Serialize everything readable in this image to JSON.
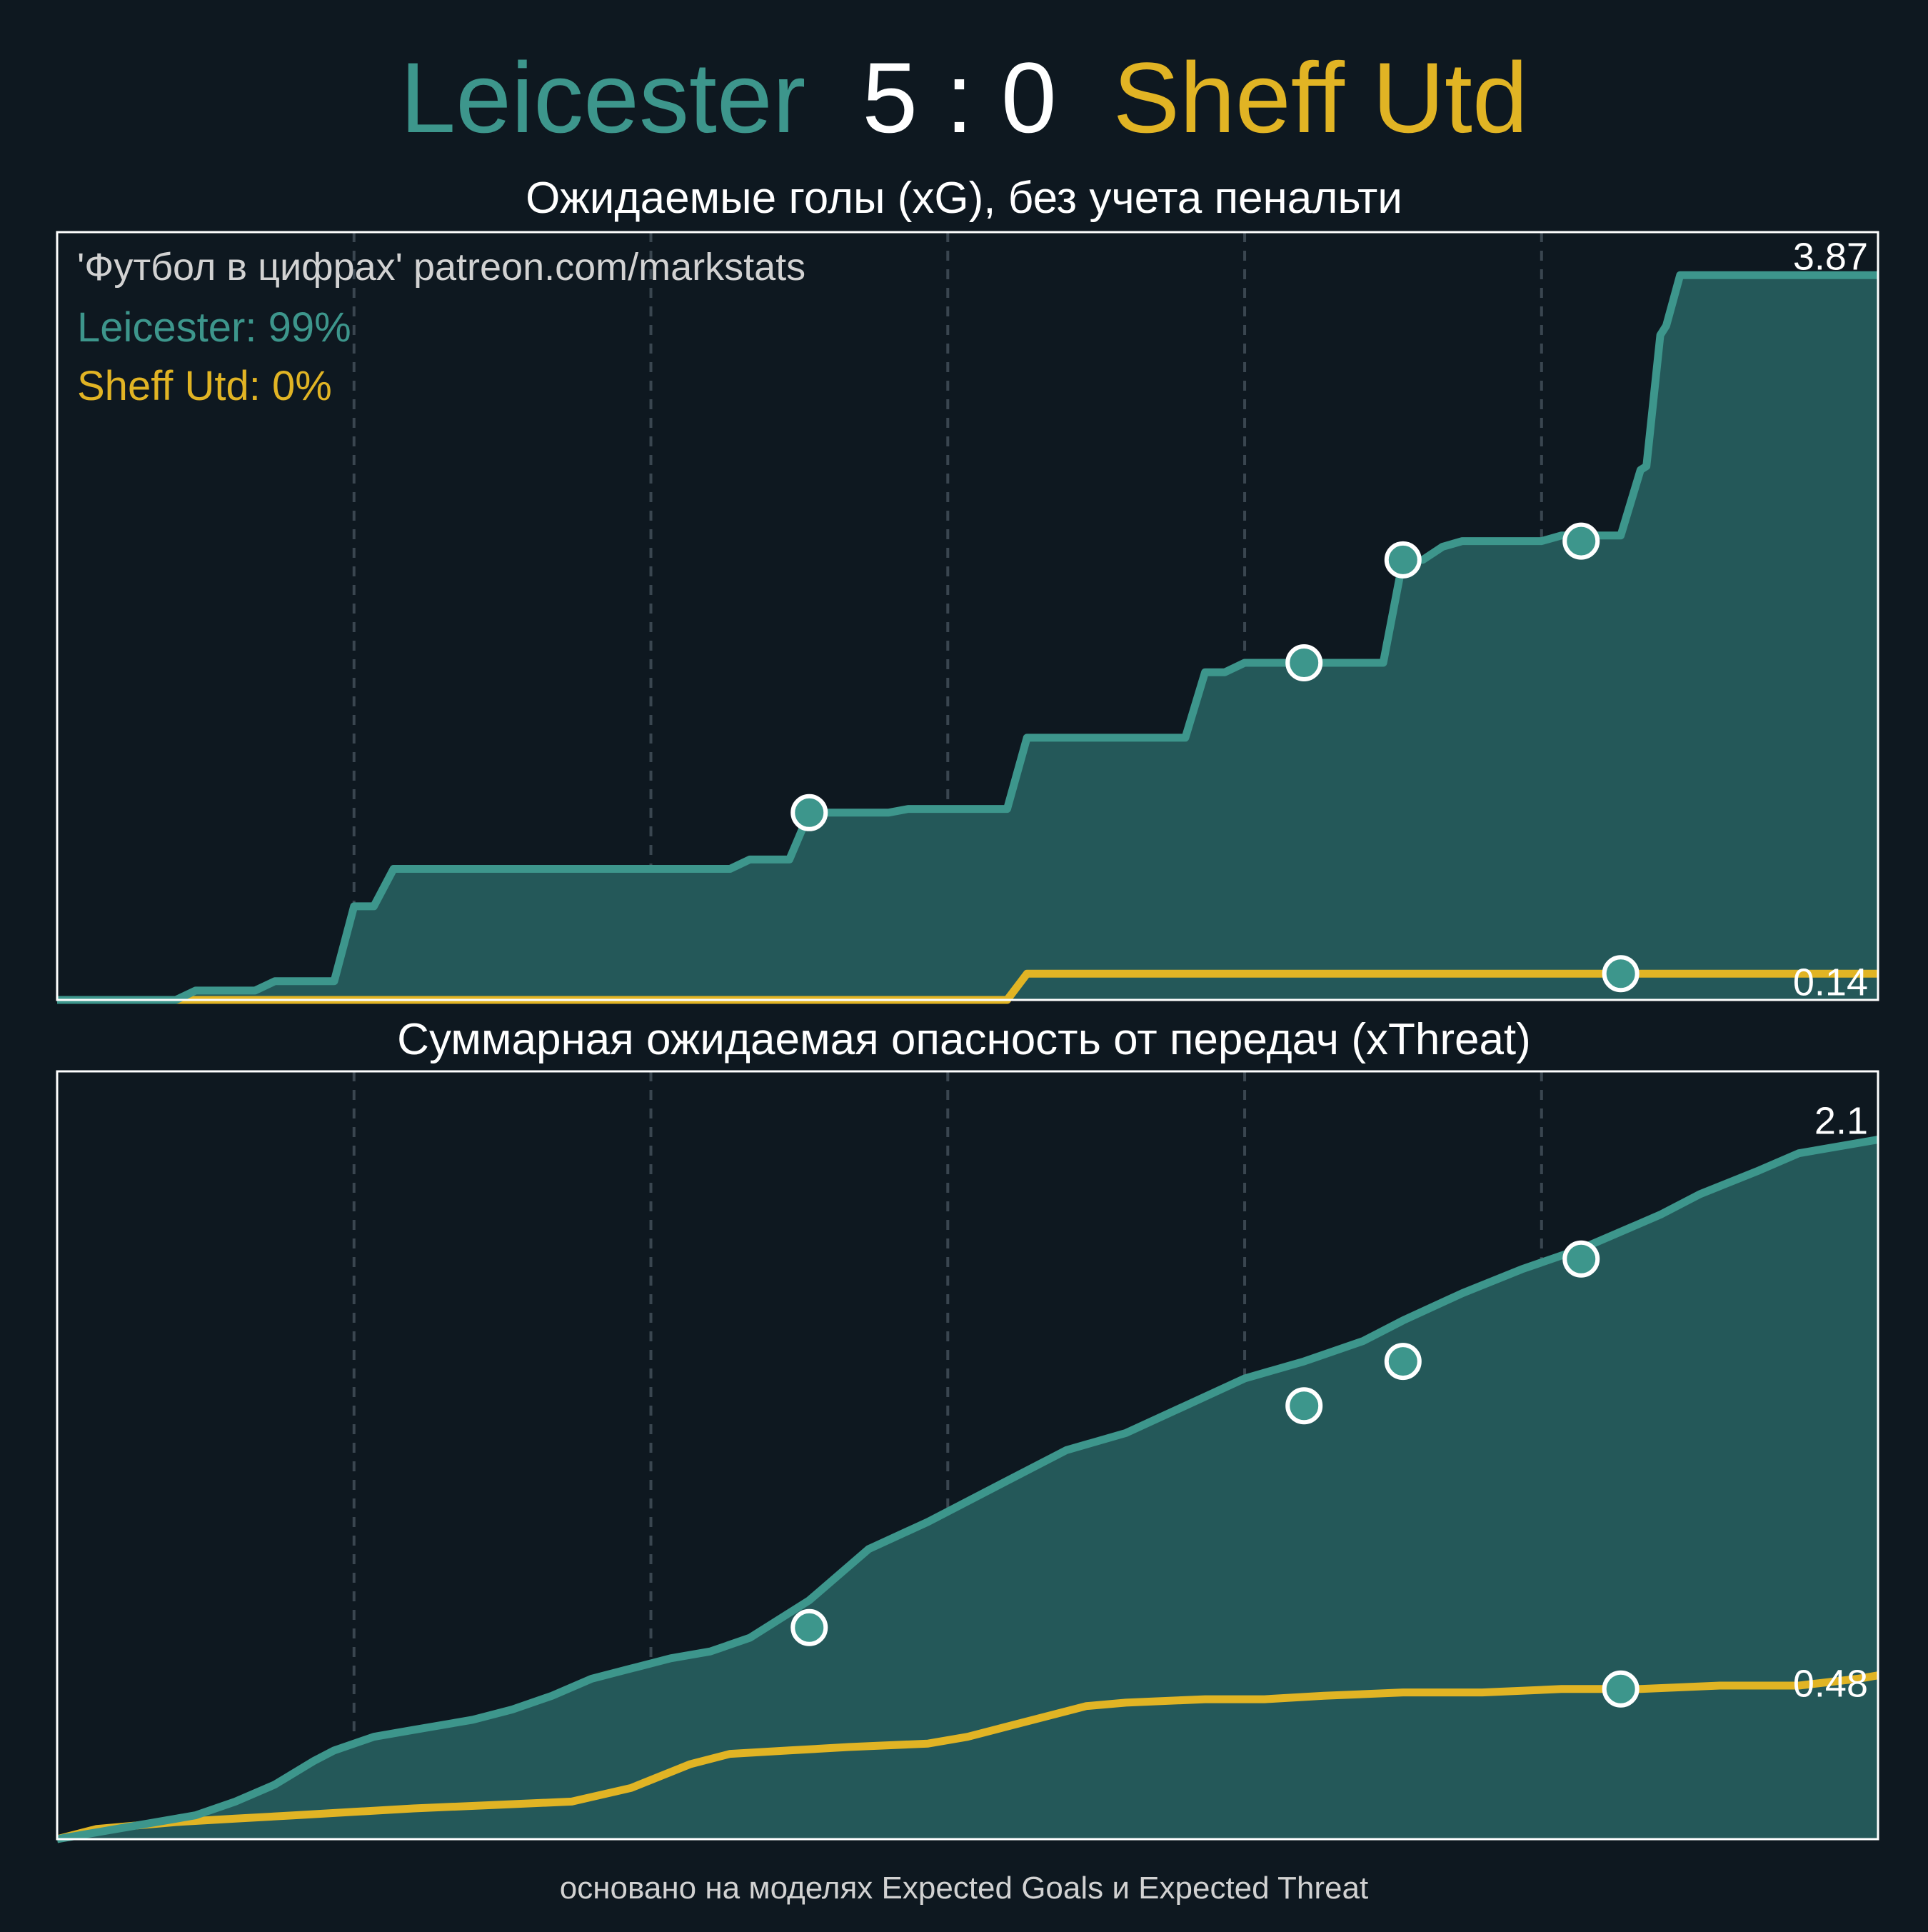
{
  "colors": {
    "background": "#0e1820",
    "home": "#3d968c",
    "home_fill": "#245859",
    "away": "#e1b424",
    "text": "#ffffff",
    "muted": "#d2d2d2",
    "grid": "#3a4650"
  },
  "header": {
    "home_team": "Leicester",
    "score": "5 : 0",
    "away_team": "Sheff Utd"
  },
  "watermark": "'Футбол в цифрах' patreon.com/markstats",
  "probabilities": {
    "home": "Leicester: 99%",
    "away": "Sheff Utd: 0%"
  },
  "footer": "основано на моделях Expected Goals и Expected Threat",
  "chart_data": [
    {
      "type": "area",
      "title": "Ожидаемые голы (xG), без учета пенальти",
      "xlim": [
        0,
        92
      ],
      "ylim": [
        0,
        4.1
      ],
      "x_ticks": [
        "15",
        "30",
        "45",
        "60",
        "75"
      ],
      "x_tick_values": [
        15,
        30,
        45,
        60,
        75
      ],
      "grid": "vertical dashed",
      "series": [
        {
          "name": "Leicester",
          "final_label": "3.87",
          "points": [
            [
              0,
              0
            ],
            [
              6,
              0
            ],
            [
              7,
              0.05
            ],
            [
              10,
              0.05
            ],
            [
              11,
              0.1
            ],
            [
              14,
              0.1
            ],
            [
              15,
              0.5
            ],
            [
              16,
              0.5
            ],
            [
              17,
              0.7
            ],
            [
              34,
              0.7
            ],
            [
              35,
              0.75
            ],
            [
              37,
              0.75
            ],
            [
              38,
              1.0
            ],
            [
              42,
              1.0
            ],
            [
              43,
              1.02
            ],
            [
              48,
              1.02
            ],
            [
              49,
              1.4
            ],
            [
              57,
              1.4
            ],
            [
              58,
              1.75
            ],
            [
              59,
              1.75
            ],
            [
              60,
              1.8
            ],
            [
              67,
              1.8
            ],
            [
              68,
              2.35
            ],
            [
              69,
              2.35
            ],
            [
              70,
              2.42
            ],
            [
              71,
              2.45
            ],
            [
              75,
              2.45
            ],
            [
              76,
              2.48
            ],
            [
              79,
              2.48
            ],
            [
              80,
              2.83
            ],
            [
              80.3,
              2.85
            ],
            [
              81,
              3.55
            ],
            [
              81.3,
              3.6
            ],
            [
              82,
              3.87
            ],
            [
              92,
              3.87
            ]
          ],
          "markers": [
            [
              38,
              1.0
            ],
            [
              63,
              1.8
            ],
            [
              68,
              2.35
            ],
            [
              77,
              2.45
            ]
          ]
        },
        {
          "name": "Sheff Utd",
          "final_label": "0.14",
          "points": [
            [
              0,
              0
            ],
            [
              48,
              0
            ],
            [
              49,
              0.14
            ],
            [
              92,
              0.14
            ]
          ],
          "markers": [
            [
              79,
              0.14
            ]
          ]
        }
      ]
    },
    {
      "type": "area",
      "title": "Суммарная ожидаемая опасность от передач (xThreat)",
      "xlim": [
        0,
        92
      ],
      "ylim": [
        0,
        2.25
      ],
      "x_ticks": [
        "15",
        "30",
        "45",
        "60",
        "75"
      ],
      "x_tick_values": [
        15,
        30,
        45,
        60,
        75
      ],
      "grid": "vertical dashed",
      "series": [
        {
          "name": "Leicester",
          "final_label": "2.1",
          "points": [
            [
              0,
              0
            ],
            [
              4,
              0.04
            ],
            [
              7,
              0.07
            ],
            [
              9,
              0.11
            ],
            [
              11,
              0.16
            ],
            [
              13,
              0.23
            ],
            [
              14,
              0.26
            ],
            [
              16,
              0.3
            ],
            [
              18,
              0.32
            ],
            [
              21,
              0.35
            ],
            [
              23,
              0.38
            ],
            [
              25,
              0.42
            ],
            [
              27,
              0.47
            ],
            [
              29,
              0.5
            ],
            [
              31,
              0.53
            ],
            [
              33,
              0.55
            ],
            [
              35,
              0.59
            ],
            [
              38,
              0.7
            ],
            [
              41,
              0.85
            ],
            [
              44,
              0.93
            ],
            [
              46,
              0.99
            ],
            [
              48,
              1.05
            ],
            [
              51,
              1.14
            ],
            [
              54,
              1.19
            ],
            [
              57,
              1.27
            ],
            [
              60,
              1.35
            ],
            [
              63,
              1.4
            ],
            [
              66,
              1.46
            ],
            [
              68,
              1.52
            ],
            [
              71,
              1.6
            ],
            [
              74,
              1.67
            ],
            [
              77,
              1.73
            ],
            [
              79,
              1.78
            ],
            [
              81,
              1.83
            ],
            [
              83,
              1.89
            ],
            [
              86,
              1.96
            ],
            [
              88,
              2.01
            ],
            [
              92,
              2.05
            ]
          ],
          "markers": [
            [
              38,
              0.62
            ],
            [
              63,
              1.27
            ],
            [
              68,
              1.4
            ],
            [
              77,
              1.7
            ]
          ]
        },
        {
          "name": "Sheff Utd",
          "final_label": "0.48",
          "points": [
            [
              0,
              0
            ],
            [
              2,
              0.03
            ],
            [
              4,
              0.04
            ],
            [
              6,
              0.05
            ],
            [
              9,
              0.06
            ],
            [
              12,
              0.07
            ],
            [
              15,
              0.08
            ],
            [
              18,
              0.09
            ],
            [
              22,
              0.1
            ],
            [
              26,
              0.11
            ],
            [
              29,
              0.15
            ],
            [
              32,
              0.22
            ],
            [
              34,
              0.25
            ],
            [
              37,
              0.26
            ],
            [
              40,
              0.27
            ],
            [
              44,
              0.28
            ],
            [
              46,
              0.3
            ],
            [
              48,
              0.33
            ],
            [
              52,
              0.39
            ],
            [
              54,
              0.4
            ],
            [
              58,
              0.41
            ],
            [
              61,
              0.41
            ],
            [
              64,
              0.42
            ],
            [
              68,
              0.43
            ],
            [
              72,
              0.43
            ],
            [
              76,
              0.44
            ],
            [
              80,
              0.44
            ],
            [
              84,
              0.45
            ],
            [
              88,
              0.45
            ],
            [
              91,
              0.47
            ],
            [
              92,
              0.48
            ]
          ],
          "markers": [
            [
              79,
              0.44
            ]
          ]
        }
      ]
    }
  ]
}
